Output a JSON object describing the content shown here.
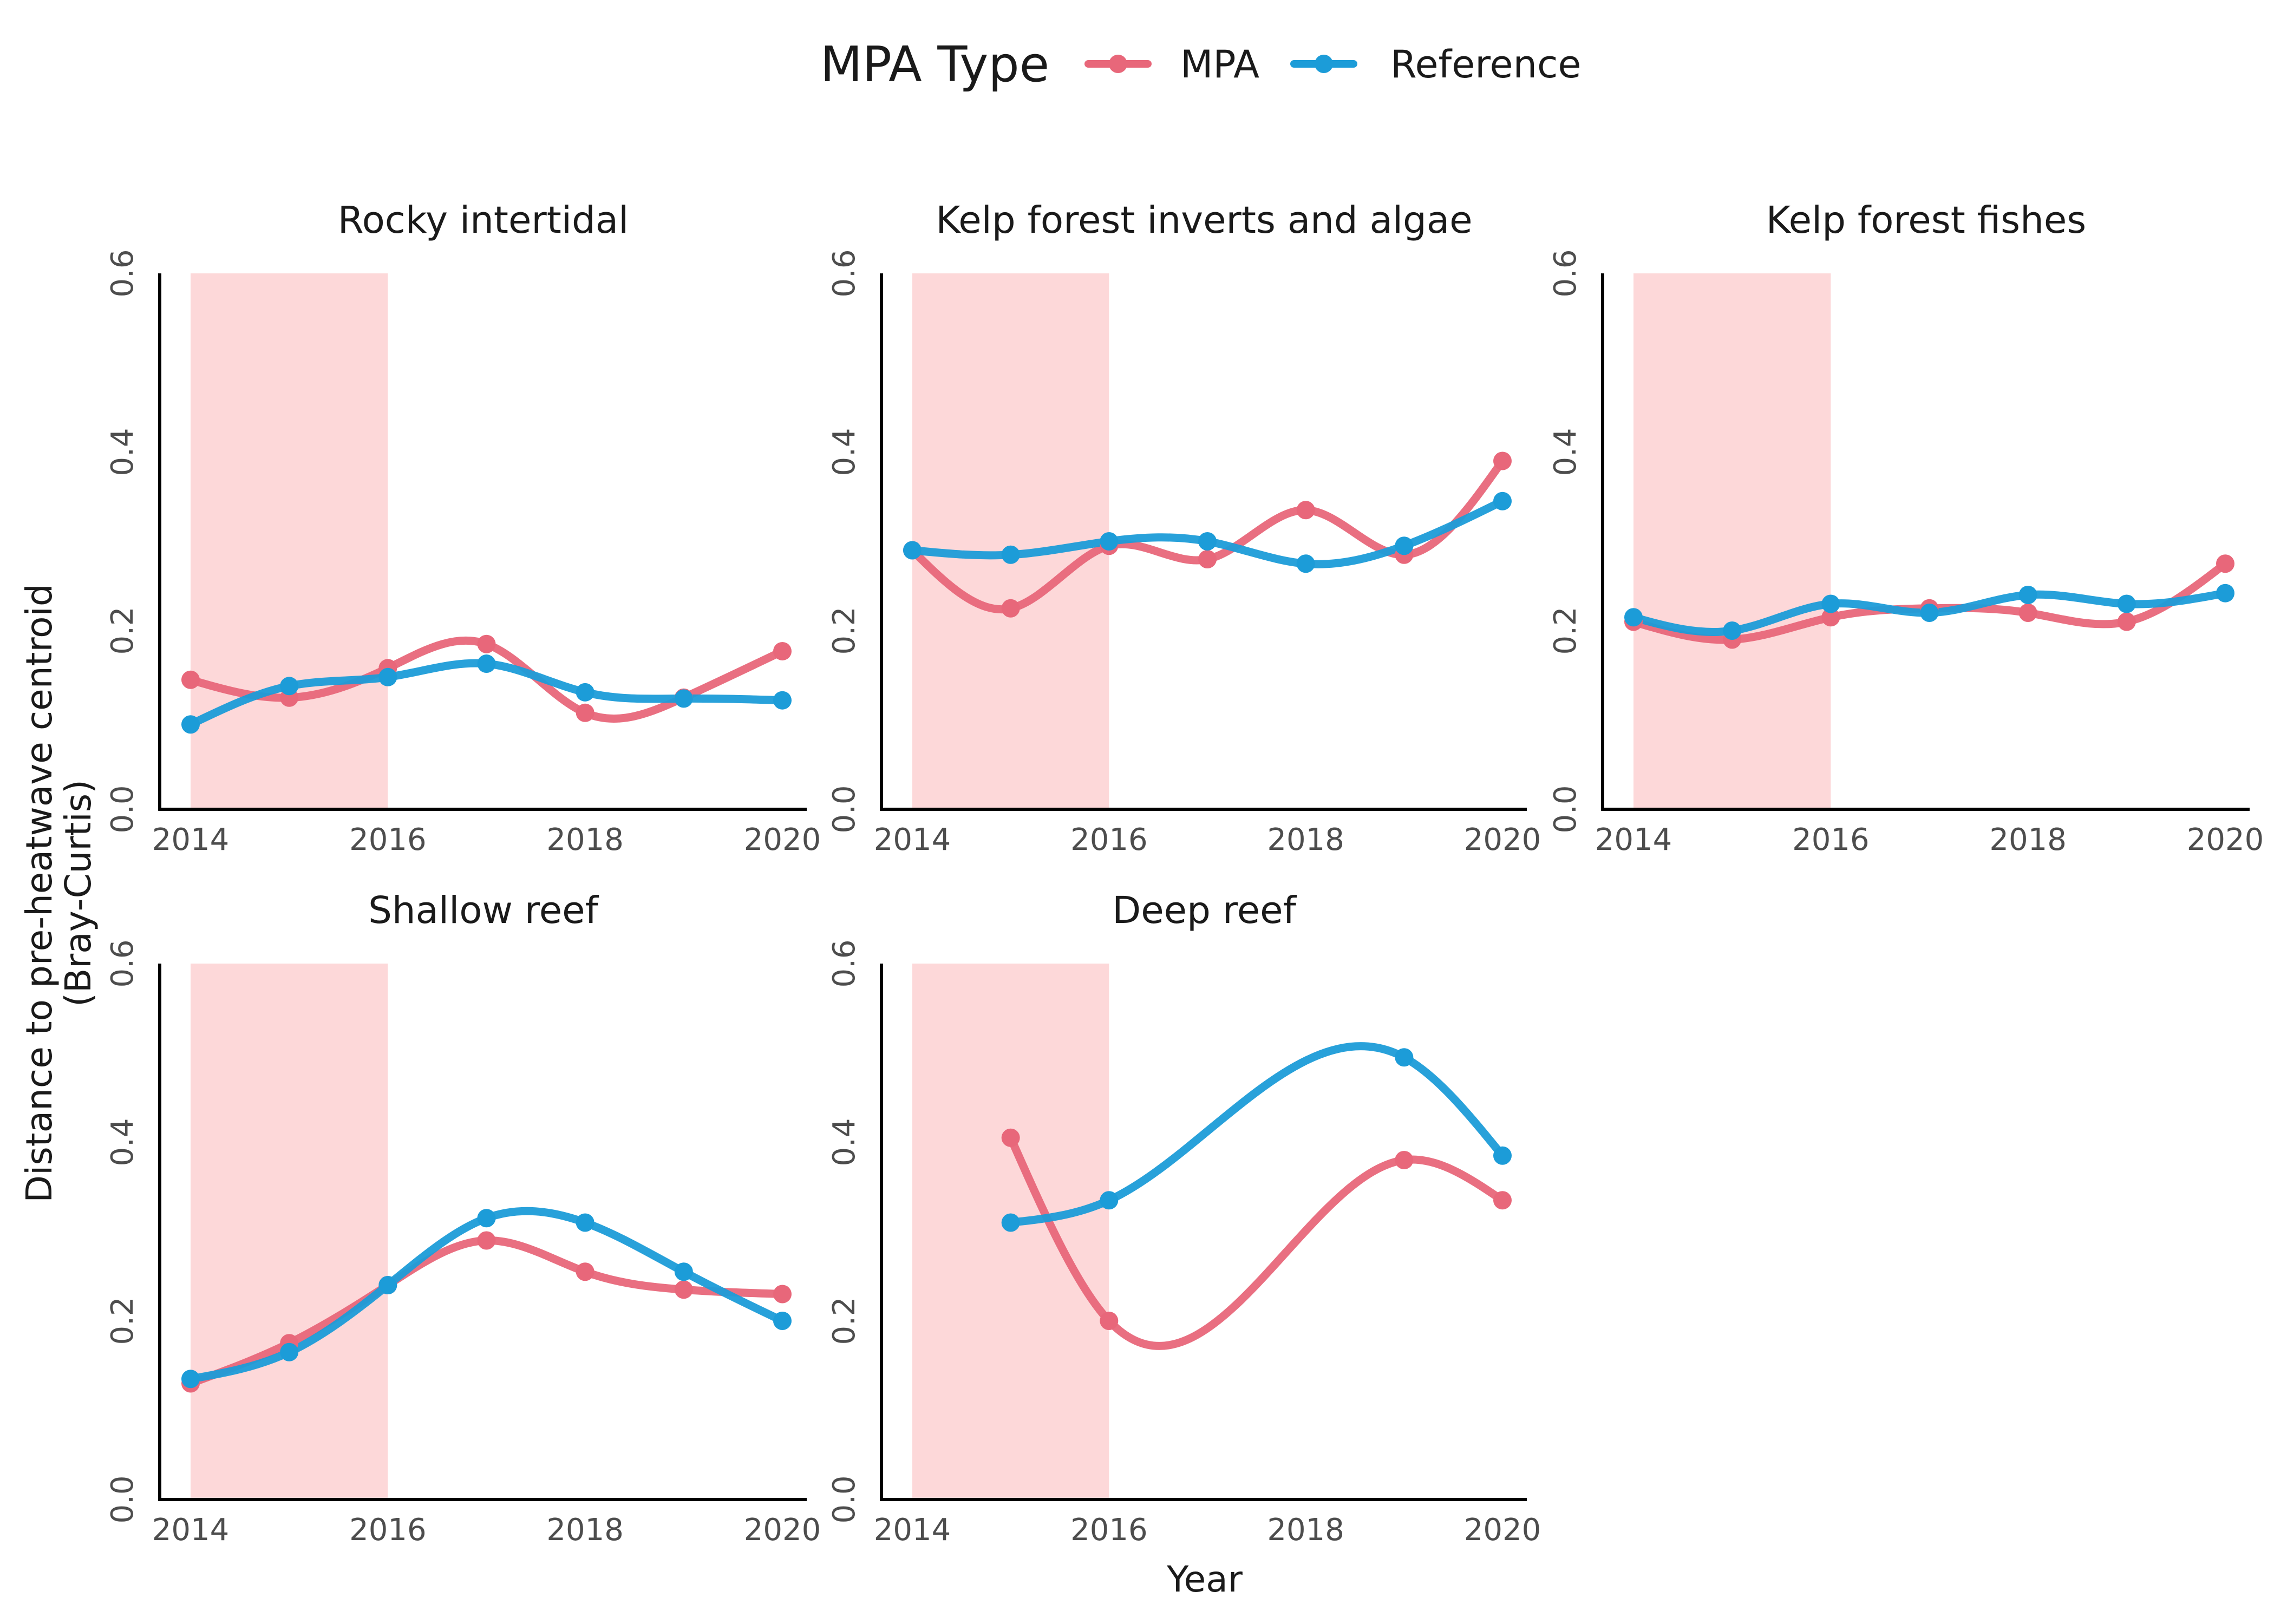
{
  "legend": {
    "title": "MPA Type",
    "entries": [
      {
        "label": "MPA",
        "color": "#E8677A"
      },
      {
        "label": "Reference",
        "color": "#1C9CD8"
      }
    ]
  },
  "axes": {
    "xlabel": "Year",
    "ylabel_line1": "Distance to pre-heatwave centroid",
    "ylabel_line2": "(Bray-Curtis)"
  },
  "chart_data": {
    "type": "line",
    "x_ticks": [
      "2014",
      "2016",
      "2018",
      "2020"
    ],
    "y_ticks": [
      "0.0",
      "0.2",
      "0.4",
      "0.6"
    ],
    "xlim": [
      2014,
      2020
    ],
    "ylim": [
      0,
      0.6
    ],
    "heatwave_period": [
      2014,
      2016
    ],
    "heatwave_color": "#FDD8D9",
    "grid": false,
    "legend_position": "top",
    "panels": [
      {
        "title": "Rocky intertidal",
        "series": [
          {
            "name": "MPA",
            "x": [
              2014,
              2015,
              2016,
              2017,
              2018,
              2019,
              2020
            ],
            "y": [
              0.145,
              0.125,
              0.158,
              0.185,
              0.108,
              0.125,
              0.177
            ]
          },
          {
            "name": "Reference",
            "x": [
              2014,
              2015,
              2016,
              2017,
              2018,
              2019,
              2020
            ],
            "y": [
              0.095,
              0.138,
              0.148,
              0.163,
              0.131,
              0.124,
              0.122
            ]
          }
        ]
      },
      {
        "title": "Kelp forest inverts and algae",
        "series": [
          {
            "name": "MPA",
            "x": [
              2014,
              2015,
              2016,
              2017,
              2018,
              2019,
              2020
            ],
            "y": [
              0.29,
              0.225,
              0.295,
              0.28,
              0.335,
              0.285,
              0.39
            ]
          },
          {
            "name": "Reference",
            "x": [
              2014,
              2015,
              2016,
              2017,
              2018,
              2019,
              2020
            ],
            "y": [
              0.29,
              0.285,
              0.3,
              0.3,
              0.275,
              0.295,
              0.345
            ]
          }
        ]
      },
      {
        "title": "Kelp forest fishes",
        "series": [
          {
            "name": "MPA",
            "x": [
              2014,
              2015,
              2016,
              2017,
              2018,
              2019,
              2020
            ],
            "y": [
              0.21,
              0.19,
              0.215,
              0.225,
              0.22,
              0.21,
              0.275
            ]
          },
          {
            "name": "Reference",
            "x": [
              2014,
              2015,
              2016,
              2017,
              2018,
              2019,
              2020
            ],
            "y": [
              0.215,
              0.2,
              0.23,
              0.22,
              0.24,
              0.23,
              0.242
            ]
          }
        ]
      },
      {
        "title": "Shallow reef",
        "series": [
          {
            "name": "MPA",
            "x": [
              2014,
              2015,
              2016,
              2017,
              2018,
              2019,
              2020
            ],
            "y": [
              0.13,
              0.175,
              0.24,
              0.29,
              0.255,
              0.235,
              0.23
            ]
          },
          {
            "name": "Reference",
            "x": [
              2014,
              2015,
              2016,
              2017,
              2018,
              2019,
              2020
            ],
            "y": [
              0.135,
              0.165,
              0.24,
              0.315,
              0.31,
              0.255,
              0.2
            ]
          }
        ]
      },
      {
        "title": "Deep reef",
        "series": [
          {
            "name": "MPA",
            "x": [
              2015,
              2016,
              2019,
              2020
            ],
            "y": [
              0.405,
              0.2,
              0.38,
              0.335
            ]
          },
          {
            "name": "Reference",
            "x": [
              2015,
              2016,
              2019,
              2020
            ],
            "y": [
              0.31,
              0.335,
              0.495,
              0.385
            ]
          }
        ]
      }
    ]
  }
}
